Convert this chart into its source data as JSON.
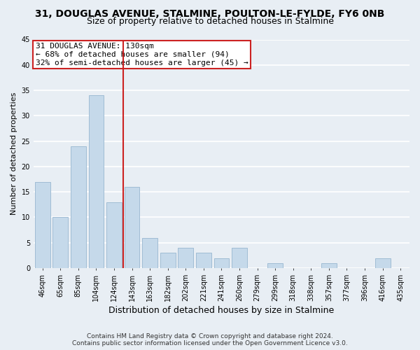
{
  "title_line1": "31, DOUGLAS AVENUE, STALMINE, POULTON-LE-FYLDE, FY6 0NB",
  "title_line2": "Size of property relative to detached houses in Stalmine",
  "xlabel": "Distribution of detached houses by size in Stalmine",
  "ylabel": "Number of detached properties",
  "bar_labels": [
    "46sqm",
    "65sqm",
    "85sqm",
    "104sqm",
    "124sqm",
    "143sqm",
    "163sqm",
    "182sqm",
    "202sqm",
    "221sqm",
    "241sqm",
    "260sqm",
    "279sqm",
    "299sqm",
    "318sqm",
    "338sqm",
    "357sqm",
    "377sqm",
    "396sqm",
    "416sqm",
    "435sqm"
  ],
  "bar_values": [
    17,
    10,
    24,
    34,
    13,
    16,
    6,
    3,
    4,
    3,
    2,
    4,
    0,
    1,
    0,
    0,
    1,
    0,
    0,
    2,
    0
  ],
  "bar_color": "#c5d9ea",
  "bar_edge_color": "#a0bcd4",
  "red_line_index": 4,
  "annotation_title": "31 DOUGLAS AVENUE: 130sqm",
  "annotation_line2": "← 68% of detached houses are smaller (94)",
  "annotation_line3": "32% of semi-detached houses are larger (45) →",
  "annotation_box_facecolor": "#ffffff",
  "annotation_box_edgecolor": "#cc2222",
  "red_line_color": "#cc2222",
  "ylim": [
    0,
    45
  ],
  "yticks": [
    0,
    5,
    10,
    15,
    20,
    25,
    30,
    35,
    40,
    45
  ],
  "background_color": "#e8eef4",
  "grid_color": "#ffffff",
  "title_fontsize": 10,
  "subtitle_fontsize": 9,
  "xlabel_fontsize": 9,
  "ylabel_fontsize": 8,
  "tick_fontsize": 7,
  "annotation_fontsize": 8,
  "footer_fontsize": 6.5,
  "footer_line1": "Contains HM Land Registry data © Crown copyright and database right 2024.",
  "footer_line2": "Contains public sector information licensed under the Open Government Licence v3.0."
}
